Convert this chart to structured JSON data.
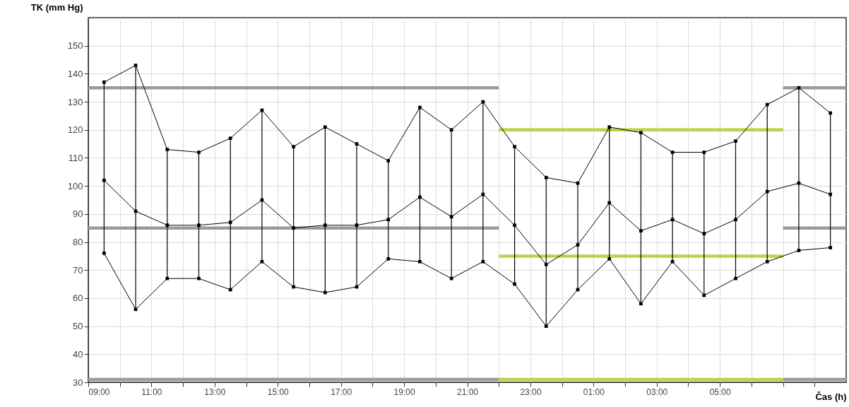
{
  "chart_data": {
    "type": "line",
    "xlabel": "Čas (h)",
    "ylabel": "TK (mm Hg)",
    "xlim": [
      "--01-01T09:00",
      "--01-02T09:00"
    ],
    "ylim": [
      30,
      160
    ],
    "xticks": [
      {
        "value": "--01-01T09:00",
        "label": "09:00"
      },
      {
        "value": "--01-01T10:00",
        "label": null
      },
      {
        "value": "--01-01T11:00",
        "label": "11:00"
      },
      {
        "value": "--01-01T12:00",
        "label": null
      },
      {
        "value": "--01-01T13:00",
        "label": "13:00"
      },
      {
        "value": "--01-01T14:00",
        "label": null
      },
      {
        "value": "--01-01T15:00",
        "label": "15:00"
      },
      {
        "value": "--01-01T16:00",
        "label": null
      },
      {
        "value": "--01-01T17:00",
        "label": "17:00"
      },
      {
        "value": "--01-01T18:00",
        "label": null
      },
      {
        "value": "--01-01T19:00",
        "label": "19:00"
      },
      {
        "value": "--01-01T20:00",
        "label": null
      },
      {
        "value": "--01-01T21:00",
        "label": "21:00"
      },
      {
        "value": "--01-01T22:00",
        "label": null
      },
      {
        "value": "--01-01T23:00",
        "label": "23:00"
      },
      {
        "value": "--01-02T00:00",
        "label": null
      },
      {
        "value": "--01-02T01:00",
        "label": "01:00"
      },
      {
        "value": "--01-02T02:00",
        "label": null
      },
      {
        "value": "--01-02T03:00",
        "label": "03:00"
      },
      {
        "value": "--01-02T04:00",
        "label": null
      },
      {
        "value": "--01-02T05:00",
        "label": "05:00"
      },
      {
        "value": "--01-02T06:00",
        "label": null
      },
      {
        "value": "--01-02T07:00",
        "label": null
      },
      {
        "value": "--01-02T08:00",
        "label": null
      }
    ],
    "yticks": [
      30,
      40,
      50,
      60,
      70,
      80,
      90,
      100,
      110,
      120,
      130,
      140,
      150
    ],
    "x": [
      "--01-01T09:30",
      "--01-01T10:30",
      "--01-01T11:30",
      "--01-01T12:30",
      "--01-01T13:30",
      "--01-01T14:30",
      "--01-01T15:30",
      "--01-01T16:30",
      "--01-01T17:30",
      "--01-01T18:30",
      "--01-01T19:30",
      "--01-01T20:30",
      "--01-01T21:30",
      "--01-01T22:30",
      "--01-01T23:30",
      "--01-02T00:30",
      "--01-02T01:30",
      "--01-02T02:30",
      "--01-02T03:30",
      "--01-02T04:30",
      "--01-02T05:30",
      "--01-02T06:30",
      "--01-02T07:30",
      "--01-02T08:30"
    ],
    "grid": true,
    "marker": "square",
    "series": [
      {
        "marker": "none",
        "color": "#9a9a9a",
        "x": [
          "--01-01T09:00",
          "--01-01T22:00"
        ],
        "values": [
          135,
          135
        ]
      },
      {
        "marker": "none",
        "color": "#9a9a9a",
        "x": [
          "--01-01T09:00",
          "--01-01T22:00"
        ],
        "values": [
          85,
          85
        ]
      },
      {
        "marker": "none",
        "color": "#9a9a9a",
        "x": [
          "--01-01T09:00",
          "--01-01T22:00"
        ],
        "values": [
          31,
          31
        ]
      },
      {
        "marker": "none",
        "color": "#b8d449",
        "x": [
          "--01-01T22:00",
          "--01-02T07:00"
        ],
        "values": [
          120,
          120
        ]
      },
      {
        "marker": "none",
        "color": "#b8d449",
        "x": [
          "--01-01T22:00",
          "--01-02T07:00"
        ],
        "values": [
          75,
          75
        ]
      },
      {
        "marker": "none",
        "color": "#b8d449",
        "x": [
          "--01-01T22:00",
          "--01-02T07:00"
        ],
        "values": [
          31,
          31
        ]
      },
      {
        "marker": "none",
        "color": "#9a9a9a",
        "x": [
          "--01-02T07:00",
          "--01-02T09:00"
        ],
        "values": [
          135,
          135
        ]
      },
      {
        "marker": "none",
        "color": "#9a9a9a",
        "x": [
          "--01-02T07:00",
          "--01-02T09:00"
        ],
        "values": [
          85,
          85
        ]
      },
      {
        "marker": "none",
        "color": "#9a9a9a",
        "x": [
          "--01-02T07:00",
          "--01-02T09:00"
        ],
        "values": [
          31,
          31
        ]
      },
      {
        "color": "#000000",
        "values": [
          137,
          143,
          113,
          112,
          117,
          127,
          114,
          121,
          115,
          109,
          128,
          120,
          130,
          114,
          103,
          101,
          121,
          119,
          112,
          112,
          116,
          129,
          135,
          126
        ]
      },
      {
        "color": "#000000",
        "values": [
          102,
          91,
          86,
          86,
          87,
          95,
          85,
          86,
          86,
          88,
          96,
          89,
          97,
          86,
          72,
          79,
          94,
          84,
          88,
          83,
          88,
          98,
          101,
          97
        ],
        "errors": [
          [
            76,
            137
          ],
          [
            56,
            143
          ],
          [
            67,
            113
          ],
          [
            67,
            112
          ],
          [
            63,
            117
          ],
          [
            73,
            127
          ],
          [
            64,
            114
          ],
          [
            62,
            121
          ],
          [
            64,
            115
          ],
          [
            74,
            109
          ],
          [
            73,
            128
          ],
          [
            67,
            120
          ],
          [
            73,
            130
          ],
          [
            65,
            114
          ],
          [
            50,
            103
          ],
          [
            63,
            101
          ],
          [
            74,
            121
          ],
          [
            58,
            119
          ],
          [
            73,
            112
          ],
          [
            61,
            112
          ],
          [
            67,
            116
          ],
          [
            73,
            129
          ],
          [
            77,
            135
          ],
          [
            78,
            126
          ]
        ]
      },
      {
        "color": "#000000",
        "values": [
          76,
          56,
          67,
          67,
          63,
          73,
          64,
          62,
          64,
          74,
          73,
          67,
          73,
          65,
          50,
          63,
          74,
          58,
          73,
          61,
          67,
          73,
          77,
          78
        ]
      }
    ]
  }
}
